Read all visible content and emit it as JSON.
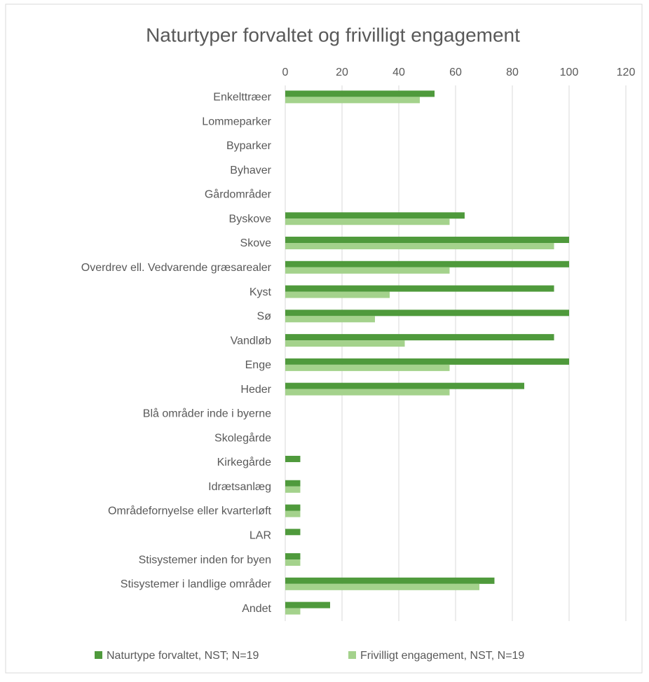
{
  "chart_data": {
    "type": "hbar",
    "title": "Naturtyper forvaltet og frivilligt engagement",
    "categories": [
      "Enkelttræer",
      "Lommeparker",
      "Byparker",
      "Byhaver",
      "Gårdområder",
      "Byskove",
      "Skove",
      "Overdrev ell. Vedvarende græsarealer",
      "Kyst",
      "Sø",
      "Vandløb",
      "Enge",
      "Heder",
      "Blå områder inde i byerne",
      "Skolegårde",
      "Kirkegårde",
      "Idrætsanlæg",
      "Områdefornyelse eller kvarterløft",
      "LAR",
      "Stisystemer inden for byen",
      "Stisystemer i landlige områder",
      "Andet"
    ],
    "series": [
      {
        "name": "Naturtype forvaltet, NST; N=19",
        "color": "#4f9a3c",
        "values": [
          52.6,
          0,
          0,
          0,
          0,
          63.2,
          100,
          100,
          94.7,
          100,
          94.7,
          100,
          84.2,
          0,
          0,
          5.3,
          5.3,
          5.3,
          5.3,
          5.3,
          73.7,
          15.8
        ]
      },
      {
        "name": "Frivilligt engagement, NST, N=19",
        "color": "#a4d28c",
        "values": [
          47.4,
          0,
          0,
          0,
          0,
          57.9,
          94.7,
          57.9,
          36.8,
          31.6,
          42.1,
          57.9,
          57.9,
          0,
          0,
          0,
          5.3,
          5.3,
          0,
          5.3,
          68.4,
          5.3
        ]
      }
    ],
    "xlim": [
      0,
      120
    ],
    "xticks": [
      0,
      20,
      40,
      60,
      80,
      100,
      120
    ],
    "grid": true,
    "legend": "bottom"
  }
}
